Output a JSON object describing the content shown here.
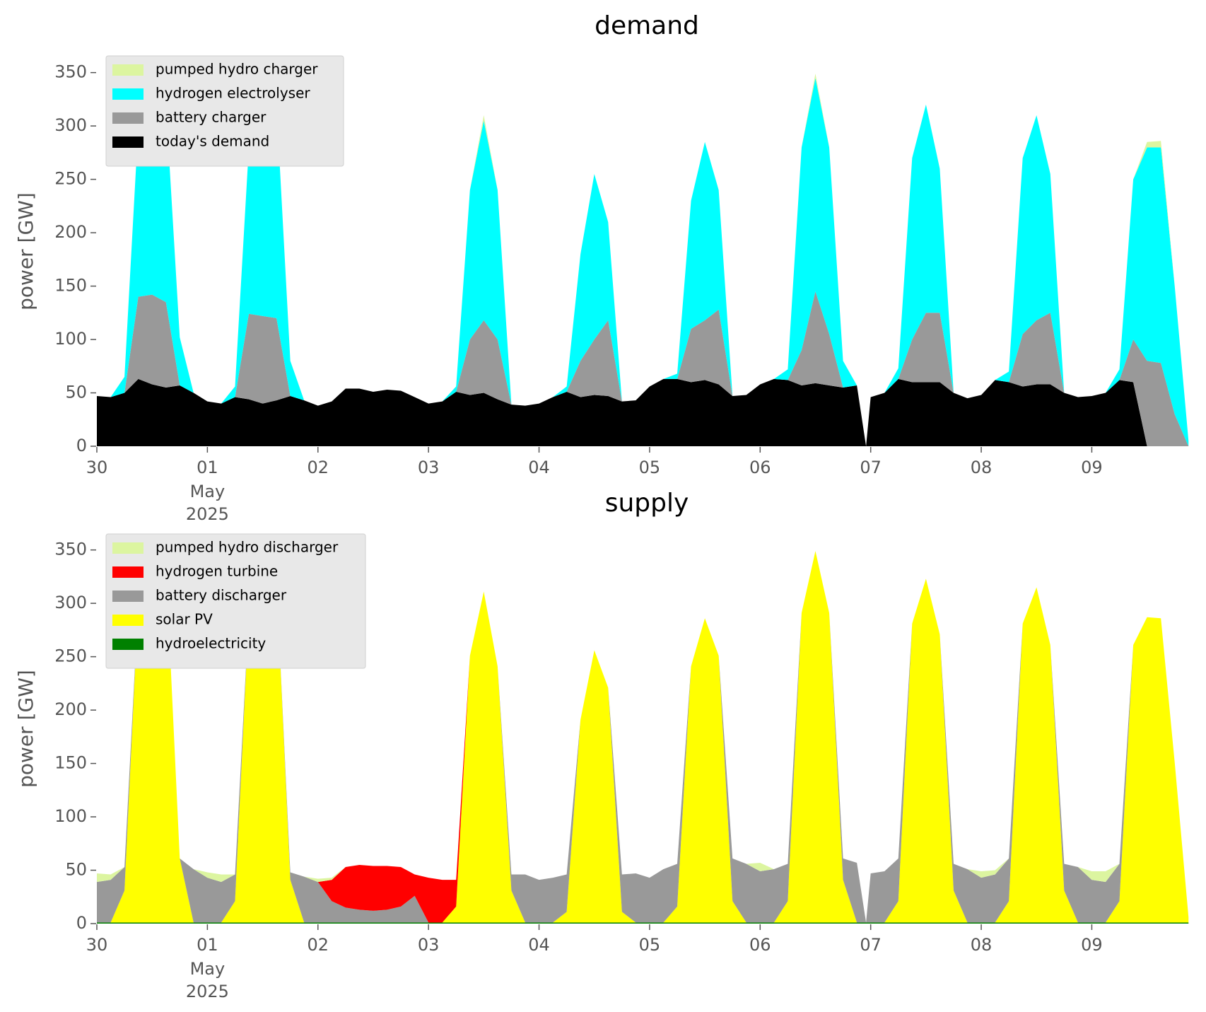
{
  "chart_data": [
    {
      "type": "stacked_area",
      "title": "demand",
      "y_label": "power [GW]",
      "x": [
        0,
        0.125,
        0.25,
        0.375,
        0.5,
        0.625,
        0.75,
        0.875,
        1,
        1.125,
        1.25,
        1.375,
        1.5,
        1.625,
        1.75,
        1.875,
        2,
        2.125,
        2.25,
        2.375,
        2.5,
        2.625,
        2.75,
        2.875,
        3,
        3.125,
        3.25,
        3.375,
        3.5,
        3.625,
        3.75,
        3.875,
        4,
        4.125,
        4.25,
        4.375,
        4.5,
        4.625,
        4.75,
        4.875,
        5,
        5.125,
        5.25,
        5.375,
        5.5,
        5.625,
        5.75,
        5.875,
        6,
        6.125,
        6.25,
        6.375,
        6.5,
        6.625,
        6.75,
        6.875,
        6.958,
        7,
        7.125,
        7.25,
        7.375,
        7.5,
        7.625,
        7.75,
        7.875,
        8,
        8.125,
        8.25,
        8.375,
        8.5,
        8.625,
        8.75,
        8.875,
        9,
        9.125,
        9.25,
        9.375,
        9.5,
        9.625,
        9.75,
        9.875
      ],
      "series": [
        {
          "name": "pumped hydro charger",
          "color": "#dcf5a0",
          "values": [
            0,
            0,
            0,
            0,
            5,
            0,
            0,
            0,
            0,
            0,
            0,
            0,
            0,
            0,
            0,
            0,
            0,
            0,
            0,
            0,
            0,
            0,
            0,
            0,
            0,
            0,
            0,
            0,
            5,
            0,
            0,
            0,
            0,
            0,
            0,
            0,
            0,
            0,
            0,
            0,
            0,
            0,
            0,
            0,
            0,
            0,
            0,
            0,
            0,
            0,
            0,
            0,
            4,
            0,
            0,
            0,
            0,
            0,
            0,
            0,
            0,
            0,
            0,
            0,
            0,
            0,
            0,
            0,
            0,
            0,
            0,
            0,
            0,
            0,
            0,
            0,
            0,
            5,
            6,
            0,
            0
          ]
        },
        {
          "name": "hydrogen electrolyser",
          "color": "#00ffff",
          "values": [
            0,
            0,
            15,
            160,
            203,
            185,
            45,
            0,
            0,
            0,
            10,
            156,
            208,
            200,
            33,
            0,
            0,
            0,
            0,
            0,
            0,
            0,
            0,
            0,
            0,
            0,
            5,
            140,
            187,
            140,
            0,
            0,
            0,
            0,
            5,
            100,
            155,
            92,
            0,
            0,
            0,
            0,
            5,
            120,
            167,
            112,
            0,
            0,
            0,
            0,
            10,
            190,
            200,
            175,
            25,
            0,
            0,
            0,
            0,
            10,
            170,
            195,
            135,
            0,
            0,
            0,
            0,
            10,
            165,
            192,
            130,
            0,
            0,
            0,
            0,
            10,
            150,
            200,
            202,
            120,
            5
          ]
        },
        {
          "name": "battery charger",
          "color": "#999999",
          "values": [
            0,
            0,
            0,
            77,
            84,
            80,
            0,
            0,
            0,
            0,
            0,
            80,
            82,
            77,
            0,
            0,
            0,
            0,
            0,
            0,
            0,
            0,
            0,
            0,
            0,
            0,
            0,
            52,
            68,
            56,
            0,
            0,
            0,
            0,
            0,
            34,
            52,
            71,
            0,
            0,
            0,
            0,
            0,
            50,
            56,
            70,
            0,
            0,
            0,
            0,
            0,
            33,
            86,
            48,
            0,
            0,
            0,
            0,
            0,
            0,
            40,
            65,
            65,
            0,
            0,
            0,
            0,
            0,
            49,
            60,
            67,
            0,
            0,
            0,
            0,
            0,
            40,
            80,
            78,
            30,
            0
          ]
        },
        {
          "name": "today's demand",
          "color": "#000000",
          "values": [
            47,
            46,
            50,
            63,
            58,
            55,
            57,
            50,
            42,
            40,
            46,
            44,
            40,
            43,
            47,
            43,
            38,
            42,
            54,
            54,
            51,
            53,
            52,
            46,
            40,
            42,
            51,
            48,
            50,
            44,
            39,
            38,
            40,
            46,
            51,
            46,
            48,
            47,
            42,
            43,
            56,
            63,
            63,
            60,
            62,
            58,
            47,
            48,
            58,
            63,
            62,
            57,
            59,
            57,
            55,
            57,
            0,
            46,
            50,
            63,
            60,
            60,
            60,
            50,
            45,
            48,
            62,
            60,
            56,
            58,
            58,
            50,
            46,
            47,
            50,
            62,
            60,
            0,
            0,
            0,
            0
          ]
        }
      ],
      "xlim": [
        0,
        9.95
      ],
      "xticks": [
        {
          "value": 0,
          "label": "30"
        },
        {
          "value": 1,
          "label": "01"
        },
        {
          "value": 2,
          "label": "02"
        },
        {
          "value": 3,
          "label": "03"
        },
        {
          "value": 4,
          "label": "04"
        },
        {
          "value": 5,
          "label": "05"
        },
        {
          "value": 6,
          "label": "06"
        },
        {
          "value": 7,
          "label": "07"
        },
        {
          "value": 8,
          "label": "08"
        },
        {
          "value": 9,
          "label": "09"
        }
      ],
      "month_label": "May",
      "year_label": "2025",
      "ylim": [
        0,
        365
      ],
      "yticks": [
        0,
        50,
        100,
        150,
        200,
        250,
        300,
        350
      ],
      "legend": "upper left"
    },
    {
      "type": "stacked_area",
      "title": "supply",
      "y_label": "power [GW]",
      "x": [
        0,
        0.125,
        0.25,
        0.375,
        0.5,
        0.625,
        0.75,
        0.875,
        1,
        1.125,
        1.25,
        1.375,
        1.5,
        1.625,
        1.75,
        1.875,
        2,
        2.125,
        2.25,
        2.375,
        2.5,
        2.625,
        2.75,
        2.875,
        3,
        3.125,
        3.25,
        3.375,
        3.5,
        3.625,
        3.75,
        3.875,
        4,
        4.125,
        4.25,
        4.375,
        4.5,
        4.625,
        4.75,
        4.875,
        5,
        5.125,
        5.25,
        5.375,
        5.5,
        5.625,
        5.75,
        5.875,
        6,
        6.125,
        6.25,
        6.375,
        6.5,
        6.625,
        6.75,
        6.875,
        6.958,
        7,
        7.125,
        7.25,
        7.375,
        7.5,
        7.625,
        7.75,
        7.875,
        8,
        8.125,
        8.25,
        8.375,
        8.5,
        8.625,
        8.75,
        8.875,
        9,
        9.125,
        9.25,
        9.375,
        9.5,
        9.625,
        9.75,
        9.875
      ],
      "series": [
        {
          "name": "pumped hydro discharger",
          "color": "#dcf5a0",
          "values": [
            8,
            5,
            0,
            0,
            0,
            0,
            0,
            0,
            5,
            7,
            0,
            0,
            0,
            0,
            0,
            0,
            3,
            2,
            0,
            0,
            0,
            0,
            0,
            0,
            0,
            0,
            0,
            0,
            0,
            0,
            0,
            0,
            0,
            0,
            0,
            0,
            0,
            0,
            0,
            0,
            0,
            0,
            0,
            0,
            0,
            0,
            0,
            0,
            8,
            0,
            0,
            0,
            0,
            0,
            0,
            0,
            0,
            0,
            0,
            0,
            0,
            0,
            0,
            0,
            0,
            6,
            4,
            0,
            0,
            0,
            0,
            0,
            0,
            8,
            10,
            0,
            0,
            0,
            0,
            0,
            0
          ]
        },
        {
          "name": "hydrogen turbine",
          "color": "#ff0000",
          "values": [
            0,
            0,
            0,
            0,
            0,
            0,
            0,
            0,
            0,
            0,
            0,
            0,
            0,
            0,
            0,
            0,
            0,
            20,
            38,
            42,
            42,
            41,
            37,
            20,
            42,
            40,
            25,
            0,
            0,
            0,
            0,
            0,
            0,
            0,
            0,
            0,
            0,
            0,
            0,
            0,
            0,
            0,
            0,
            0,
            0,
            0,
            0,
            0,
            0,
            0,
            0,
            0,
            0,
            0,
            0,
            0,
            0,
            0,
            0,
            0,
            0,
            0,
            0,
            0,
            0,
            0,
            0,
            0,
            0,
            0,
            0,
            0,
            0,
            0,
            0,
            0,
            0,
            0,
            0,
            0,
            0
          ]
        },
        {
          "name": "battery discharger",
          "color": "#999999",
          "values": [
            38,
            40,
            22,
            0,
            0,
            0,
            0,
            50,
            42,
            38,
            25,
            0,
            0,
            0,
            7,
            43,
            38,
            20,
            14,
            12,
            11,
            12,
            15,
            25,
            0,
            0,
            0,
            0,
            0,
            0,
            15,
            45,
            40,
            42,
            35,
            0,
            0,
            0,
            35,
            46,
            42,
            50,
            40,
            0,
            0,
            0,
            40,
            55,
            48,
            50,
            35,
            0,
            0,
            0,
            20,
            56,
            0,
            46,
            48,
            40,
            0,
            0,
            0,
            25,
            50,
            42,
            45,
            40,
            0,
            0,
            0,
            25,
            52,
            40,
            38,
            35,
            0,
            0,
            0,
            0,
            0
          ]
        },
        {
          "name": "solar PV",
          "color": "#ffff00",
          "values": [
            0,
            0,
            30,
            300,
            350,
            335,
            60,
            0,
            0,
            0,
            20,
            290,
            330,
            320,
            40,
            0,
            0,
            0,
            0,
            0,
            0,
            0,
            0,
            0,
            0,
            0,
            15,
            250,
            310,
            240,
            30,
            0,
            0,
            0,
            10,
            190,
            255,
            220,
            10,
            0,
            0,
            0,
            15,
            240,
            285,
            250,
            20,
            0,
            0,
            0,
            20,
            290,
            348,
            290,
            40,
            0,
            0,
            0,
            0,
            20,
            280,
            322,
            270,
            30,
            0,
            0,
            0,
            20,
            280,
            314,
            260,
            30,
            0,
            0,
            0,
            20,
            260,
            286,
            285,
            150,
            5
          ]
        },
        {
          "name": "hydroelectricity",
          "color": "#008000",
          "values": [
            1,
            1,
            1,
            1,
            1,
            1,
            1,
            1,
            1,
            1,
            1,
            1,
            1,
            1,
            1,
            1,
            1,
            1,
            1,
            1,
            1,
            1,
            1,
            1,
            1,
            1,
            1,
            1,
            1,
            1,
            1,
            1,
            1,
            1,
            1,
            1,
            1,
            1,
            1,
            1,
            1,
            1,
            1,
            1,
            1,
            1,
            1,
            1,
            1,
            1,
            1,
            1,
            1,
            1,
            1,
            1,
            1,
            1,
            1,
            1,
            1,
            1,
            1,
            1,
            1,
            1,
            1,
            1,
            1,
            1,
            1,
            1,
            1,
            1,
            1,
            1,
            1,
            1,
            1,
            1,
            1
          ]
        }
      ],
      "xlim": [
        0,
        9.95
      ],
      "xticks": [
        {
          "value": 0,
          "label": "30"
        },
        {
          "value": 1,
          "label": "01"
        },
        {
          "value": 2,
          "label": "02"
        },
        {
          "value": 3,
          "label": "03"
        },
        {
          "value": 4,
          "label": "04"
        },
        {
          "value": 5,
          "label": "05"
        },
        {
          "value": 6,
          "label": "06"
        },
        {
          "value": 7,
          "label": "07"
        },
        {
          "value": 8,
          "label": "08"
        },
        {
          "value": 9,
          "label": "09"
        }
      ],
      "month_label": "May",
      "year_label": "2025",
      "ylim": [
        0,
        365
      ],
      "yticks": [
        0,
        50,
        100,
        150,
        200,
        250,
        300,
        350
      ],
      "legend": "upper left"
    }
  ]
}
